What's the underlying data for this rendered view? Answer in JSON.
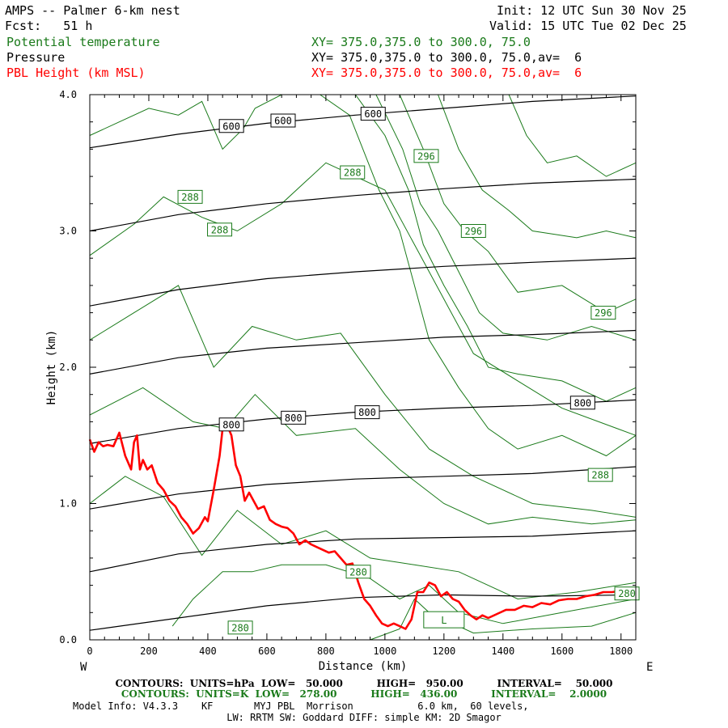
{
  "header": {
    "title": "AMPS -- Palmer 6-km nest",
    "fcst": "Fcst:   51 h",
    "init": "Init: 12 UTC Sun 30 Nov 25",
    "valid": "Valid: 15 UTC Tue 02 Dec 25",
    "field1": "Potential temperature",
    "field2": "Pressure",
    "field3": "PBL Height (km MSL)",
    "xy1": "XY= 375.0,375.0 to 300.0, 75.0",
    "xy2": "XY= 375.0,375.0 to 300.0, 75.0,av=  6",
    "xy3": "XY= 375.0,375.0 to 300.0, 75.0,av=  6"
  },
  "colors": {
    "theta": "#1a7a1a",
    "pressure": "#000000",
    "pbl": "#ff0000"
  },
  "chart_data": {
    "type": "line",
    "xlabel": "Distance (km)",
    "ylabel": "Height (km)",
    "xlim": [
      0,
      1850
    ],
    "ylim": [
      0,
      4
    ],
    "xticks": [
      "0",
      "200",
      "400",
      "600",
      "800",
      "1000",
      "1200",
      "1400",
      "1600",
      "1800"
    ],
    "yticks": [
      "0.0",
      "1.0",
      "2.0",
      "3.0",
      "4.0"
    ],
    "west_label": "W",
    "east_label": "E",
    "pressure_contours": [
      {
        "x": [
          0,
          300,
          600,
          900,
          1200,
          1500,
          1850
        ],
        "y": [
          0.07,
          0.16,
          0.25,
          0.31,
          0.33,
          0.32,
          0.33
        ]
      },
      {
        "x": [
          0,
          300,
          600,
          900,
          1200,
          1500,
          1850
        ],
        "y": [
          0.5,
          0.63,
          0.7,
          0.74,
          0.75,
          0.76,
          0.8
        ]
      },
      {
        "x": [
          0,
          300,
          600,
          900,
          1200,
          1500,
          1850
        ],
        "y": [
          0.96,
          1.07,
          1.14,
          1.18,
          1.2,
          1.22,
          1.27
        ]
      },
      {
        "x": [
          0,
          300,
          600,
          900,
          1200,
          1500,
          1850
        ],
        "y": [
          1.44,
          1.55,
          1.62,
          1.67,
          1.7,
          1.72,
          1.76
        ]
      },
      {
        "x": [
          0,
          300,
          600,
          900,
          1200,
          1500,
          1850
        ],
        "y": [
          1.95,
          2.07,
          2.14,
          2.18,
          2.22,
          2.24,
          2.27
        ]
      },
      {
        "x": [
          0,
          300,
          600,
          900,
          1200,
          1500,
          1850
        ],
        "y": [
          2.45,
          2.57,
          2.65,
          2.7,
          2.74,
          2.77,
          2.8
        ]
      },
      {
        "x": [
          0,
          300,
          600,
          900,
          1200,
          1500,
          1850
        ],
        "y": [
          3.0,
          3.12,
          3.2,
          3.26,
          3.31,
          3.35,
          3.38
        ]
      },
      {
        "x": [
          0,
          300,
          600,
          900,
          1200,
          1500,
          1850
        ],
        "y": [
          3.61,
          3.71,
          3.79,
          3.85,
          3.9,
          3.95,
          3.99
        ]
      }
    ],
    "pressure_labels": [
      {
        "text": "600",
        "x": 480,
        "y": 3.77
      },
      {
        "text": "600",
        "x": 655,
        "y": 3.81
      },
      {
        "text": "600",
        "x": 960,
        "y": 3.86
      },
      {
        "text": "800",
        "x": 480,
        "y": 1.58
      },
      {
        "text": "800",
        "x": 690,
        "y": 1.63
      },
      {
        "text": "800",
        "x": 940,
        "y": 1.67
      },
      {
        "text": "800",
        "x": 1670,
        "y": 1.74
      }
    ],
    "theta_contours": [
      {
        "x": [
          0,
          150,
          250,
          380,
          500,
          650,
          800,
          1000,
          1100,
          1200,
          1300,
          1450,
          1600,
          1850
        ],
        "y": [
          2.82,
          3.05,
          3.25,
          3.1,
          3.0,
          3.2,
          3.5,
          3.3,
          2.9,
          2.5,
          2.1,
          1.9,
          1.7,
          1.5
        ]
      },
      {
        "x": [
          0,
          150,
          300,
          420,
          550,
          700,
          850,
          1000,
          1150,
          1300,
          1500,
          1700,
          1850
        ],
        "y": [
          2.2,
          2.4,
          2.6,
          2.0,
          2.3,
          2.2,
          2.25,
          1.8,
          1.4,
          1.2,
          1.0,
          0.95,
          0.9
        ]
      },
      {
        "x": [
          0,
          180,
          350,
          460,
          560,
          700,
          900,
          1050,
          1200,
          1350,
          1500,
          1700,
          1850
        ],
        "y": [
          1.65,
          1.85,
          1.6,
          1.55,
          1.8,
          1.5,
          1.55,
          1.25,
          1.0,
          0.85,
          0.9,
          0.85,
          0.88
        ]
      },
      {
        "x": [
          0,
          120,
          250,
          380,
          500,
          650,
          800,
          950,
          1100,
          1250,
          1450,
          1650,
          1850
        ],
        "y": [
          1.0,
          1.2,
          1.05,
          0.62,
          0.95,
          0.7,
          0.8,
          0.6,
          0.55,
          0.5,
          0.3,
          0.35,
          0.42
        ]
      },
      {
        "x": [
          280,
          350,
          450,
          550,
          650,
          800,
          950,
          1050,
          1150,
          1250,
          1400,
          1600,
          1850
        ],
        "y": [
          0.1,
          0.3,
          0.5,
          0.5,
          0.55,
          0.55,
          0.45,
          0.3,
          0.4,
          0.2,
          0.12,
          0.2,
          0.3
        ]
      },
      {
        "x": [
          950,
          1050,
          1100,
          1150,
          1200,
          1300,
          1500,
          1700,
          1850
        ],
        "y": [
          0.0,
          0.08,
          0.3,
          0.2,
          0.15,
          0.05,
          0.08,
          0.1,
          0.2
        ]
      },
      {
        "x": [
          780,
          880,
          980,
          1050,
          1100,
          1150,
          1250,
          1350,
          1450,
          1600,
          1750,
          1850
        ],
        "y": [
          4.0,
          3.85,
          3.3,
          3.0,
          2.6,
          2.2,
          1.85,
          1.55,
          1.4,
          1.5,
          1.35,
          1.5
        ]
      },
      {
        "x": [
          900,
          1000,
          1080,
          1130,
          1200,
          1280,
          1350,
          1450,
          1600,
          1750,
          1850
        ],
        "y": [
          4.0,
          3.7,
          3.3,
          2.9,
          2.6,
          2.3,
          2.0,
          1.95,
          1.9,
          1.75,
          1.85
        ]
      },
      {
        "x": [
          970,
          1060,
          1120,
          1180,
          1250,
          1320,
          1400,
          1550,
          1700,
          1850
        ],
        "y": [
          4.0,
          3.6,
          3.2,
          3.0,
          2.7,
          2.4,
          2.25,
          2.2,
          2.3,
          2.2
        ]
      },
      {
        "x": [
          1050,
          1130,
          1200,
          1270,
          1350,
          1450,
          1600,
          1750,
          1850
        ],
        "y": [
          4.0,
          3.6,
          3.2,
          3.0,
          2.85,
          2.55,
          2.6,
          2.4,
          2.5
        ]
      },
      {
        "x": [
          1180,
          1250,
          1330,
          1420,
          1500,
          1650,
          1750,
          1850
        ],
        "y": [
          4.0,
          3.6,
          3.3,
          3.15,
          3.0,
          2.95,
          3.0,
          2.95
        ]
      },
      {
        "x": [
          1420,
          1480,
          1550,
          1650,
          1750,
          1850
        ],
        "y": [
          4.0,
          3.7,
          3.5,
          3.55,
          3.4,
          3.5
        ]
      },
      {
        "x": [
          0,
          100,
          200,
          300,
          380,
          450,
          520,
          560,
          650,
          750
        ],
        "y": [
          3.7,
          3.8,
          3.9,
          3.85,
          3.95,
          3.6,
          3.75,
          3.9,
          4.0,
          4.0
        ]
      }
    ],
    "theta_labels": [
      {
        "text": "296",
        "x": 1140,
        "y": 3.55
      },
      {
        "text": "296",
        "x": 1300,
        "y": 3.0
      },
      {
        "text": "296",
        "x": 1740,
        "y": 2.4
      },
      {
        "text": "288",
        "x": 890,
        "y": 3.43
      },
      {
        "text": "288",
        "x": 340,
        "y": 3.25
      },
      {
        "text": "288",
        "x": 440,
        "y": 3.01
      },
      {
        "text": "288",
        "x": 1730,
        "y": 1.21
      },
      {
        "text": "280",
        "x": 910,
        "y": 0.5
      },
      {
        "text": "280",
        "x": 510,
        "y": 0.09
      },
      {
        "text": "280",
        "x": 1820,
        "y": 0.34
      }
    ],
    "series": [
      {
        "name": "PBL Height (km MSL)",
        "x": [
          0,
          15,
          30,
          45,
          60,
          80,
          100,
          120,
          140,
          150,
          160,
          170,
          180,
          195,
          210,
          230,
          250,
          270,
          290,
          310,
          330,
          350,
          370,
          390,
          400,
          420,
          440,
          450,
          460,
          470,
          480,
          495,
          510,
          525,
          540,
          555,
          570,
          590,
          610,
          630,
          650,
          670,
          690,
          710,
          730,
          750,
          770,
          790,
          810,
          830,
          850,
          870,
          890,
          910,
          930,
          950,
          970,
          990,
          1010,
          1030,
          1050,
          1070,
          1090,
          1110,
          1130,
          1150,
          1170,
          1190,
          1210,
          1230,
          1250,
          1270,
          1290,
          1310,
          1330,
          1350,
          1380,
          1410,
          1440,
          1470,
          1500,
          1530,
          1560,
          1590,
          1620,
          1650,
          1680,
          1710,
          1740,
          1770,
          1800,
          1830,
          1850
        ],
        "y": [
          1.47,
          1.38,
          1.45,
          1.42,
          1.43,
          1.42,
          1.52,
          1.35,
          1.25,
          1.45,
          1.5,
          1.25,
          1.32,
          1.25,
          1.28,
          1.15,
          1.1,
          1.02,
          0.98,
          0.9,
          0.85,
          0.78,
          0.82,
          0.9,
          0.87,
          1.1,
          1.35,
          1.55,
          1.57,
          1.55,
          1.5,
          1.28,
          1.2,
          1.02,
          1.08,
          1.02,
          0.96,
          0.98,
          0.88,
          0.85,
          0.83,
          0.82,
          0.78,
          0.7,
          0.73,
          0.7,
          0.68,
          0.66,
          0.64,
          0.65,
          0.6,
          0.55,
          0.56,
          0.42,
          0.3,
          0.25,
          0.18,
          0.12,
          0.1,
          0.12,
          0.1,
          0.08,
          0.15,
          0.35,
          0.35,
          0.42,
          0.4,
          0.32,
          0.35,
          0.3,
          0.28,
          0.22,
          0.18,
          0.15,
          0.18,
          0.16,
          0.19,
          0.22,
          0.22,
          0.25,
          0.24,
          0.27,
          0.26,
          0.29,
          0.3,
          0.3,
          0.32,
          0.33,
          0.35,
          0.35,
          0.36,
          0.37,
          0.36
        ]
      }
    ],
    "low_marker": {
      "text": "L",
      "x": 1200,
      "y": 0.1
    }
  },
  "footer": {
    "line1": "CONTOURS:  UNITS=hPa  LOW=   50.000          HIGH=   950.00          INTERVAL=    50.000",
    "line2": "CONTOURS:  UNITS=K  LOW=   278.00          HIGH=   436.00          INTERVAL=    2.0000",
    "line3": "Model Info: V4.3.3    KF       MYJ PBL  Morrison           6.0 km,  60 levels,",
    "line4": "LW: RRTM SW: Goddard DIFF: simple KM: 2D Smagor"
  }
}
